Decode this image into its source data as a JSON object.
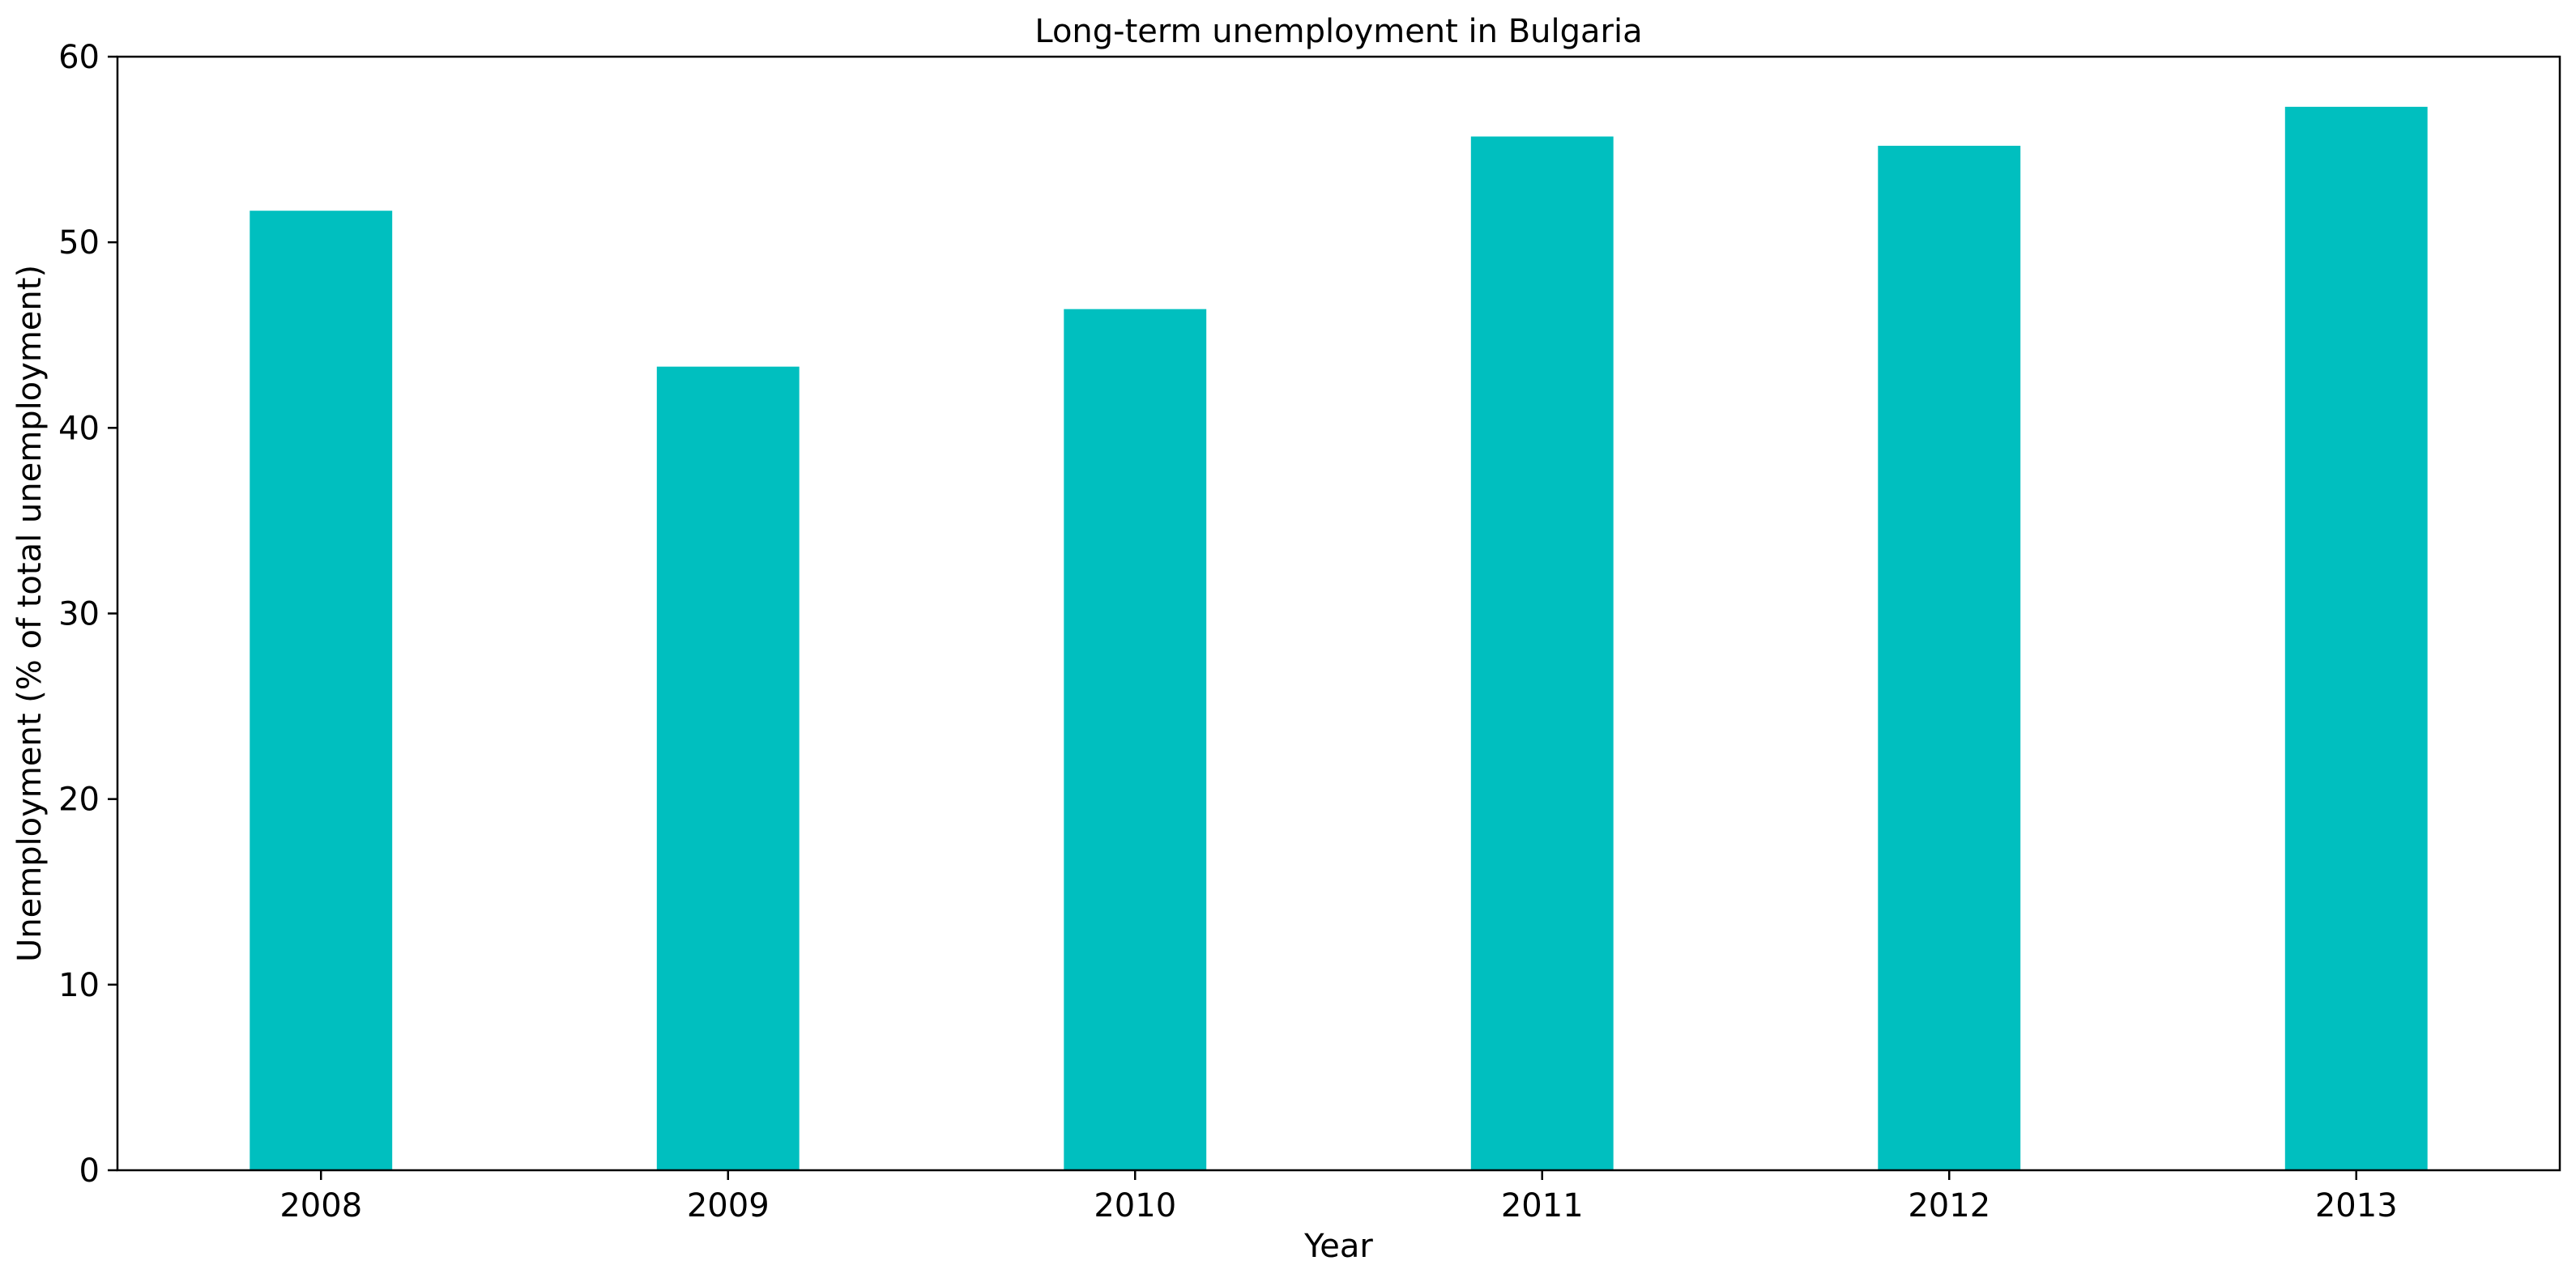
{
  "chart_data": {
    "type": "bar",
    "title": "Long-term unemployment in Bulgaria",
    "xlabel": "Year",
    "ylabel": "Unemployment (% of total unemployment)",
    "categories": [
      "2008",
      "2009",
      "2010",
      "2011",
      "2012",
      "2013"
    ],
    "values": [
      51.7,
      43.3,
      46.4,
      55.7,
      55.2,
      57.3
    ],
    "ylim": [
      0,
      60
    ],
    "yticks": [
      0,
      10,
      20,
      30,
      40,
      50,
      60
    ],
    "bar_color": "#00bfbf",
    "grid": false,
    "legend": "none"
  }
}
